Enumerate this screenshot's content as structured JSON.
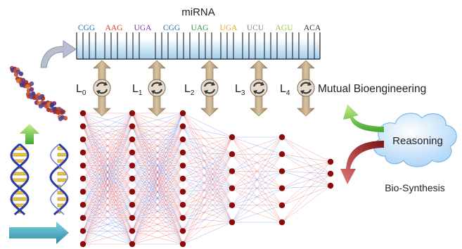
{
  "title": "miRNA",
  "codons": [
    {
      "text": "CGG",
      "color": "#1f6fb5"
    },
    {
      "text": "AAG",
      "color": "#e03a2f"
    },
    {
      "text": "UGA",
      "color": "#7a3fa0"
    },
    {
      "text": "CGG",
      "color": "#1f6fb5"
    },
    {
      "text": "UAG",
      "color": "#2f9a4a"
    },
    {
      "text": "UGA",
      "color": "#f0a418"
    },
    {
      "text": "UCU",
      "color": "#8a8a8a"
    },
    {
      "text": "AGU",
      "color": "#9fcb4a"
    },
    {
      "text": "ACA",
      "color": "#333333"
    }
  ],
  "layer_labels": [
    {
      "base": "L",
      "sub": "0"
    },
    {
      "base": "L",
      "sub": "1"
    },
    {
      "base": "L",
      "sub": "2"
    },
    {
      "base": "L",
      "sub": "3"
    },
    {
      "base": "L",
      "sub": "4"
    }
  ],
  "mutual_label": "Mutual Bioengineering",
  "reasoning_label": "Reasoning",
  "biosynthesis_label": "Bio-Synthesis",
  "network": {
    "layer_node_counts": [
      11,
      11,
      11,
      6,
      6,
      3
    ],
    "node_color": "#8b0b0b",
    "edge_colors": [
      "#e05555",
      "#5a6fd8"
    ]
  },
  "colors": {
    "arrow_tan": "#c8ad84",
    "cloud_blue": "#cfe6fb",
    "green_arrow": "#8fd14f",
    "red_arrow": "#a52a2a",
    "teal_arrow": "#4fb3c8"
  }
}
